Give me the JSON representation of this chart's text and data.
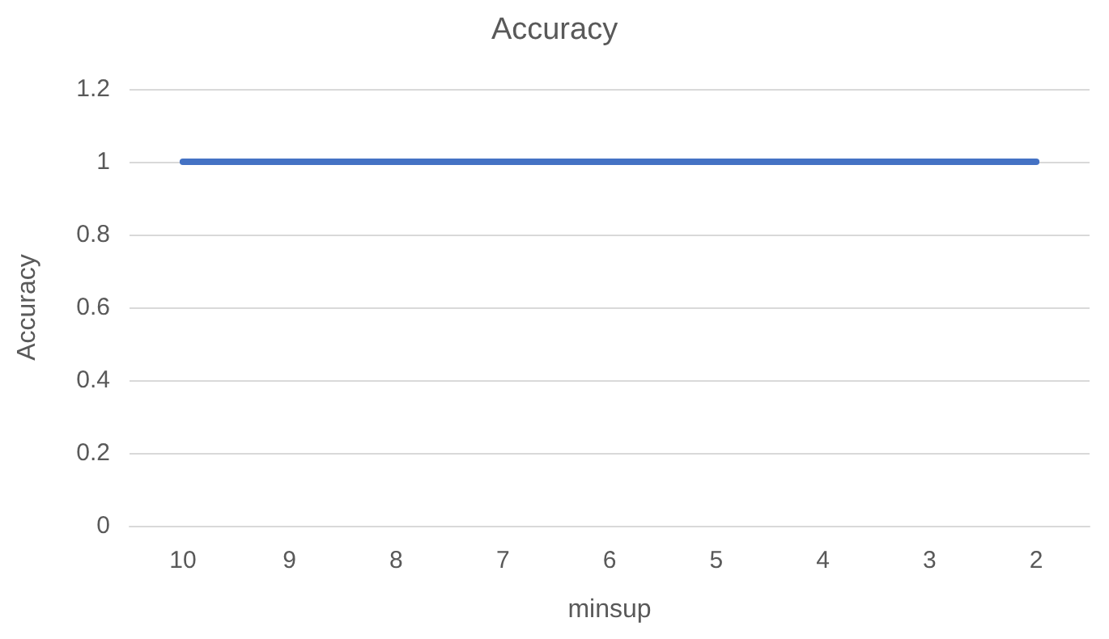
{
  "chart_data": {
    "type": "line",
    "title": "Accuracy",
    "xlabel": "minsup",
    "ylabel": "Accuracy",
    "categories": [
      "10",
      "9",
      "8",
      "7",
      "6",
      "5",
      "4",
      "3",
      "2"
    ],
    "series": [
      {
        "color": "#4472c4",
        "values": [
          1,
          1,
          1,
          1,
          1,
          1,
          1,
          1,
          1
        ]
      }
    ],
    "ylim": [
      0,
      1.2
    ],
    "yticks": [
      0,
      0.2,
      0.4,
      0.6,
      0.8,
      1,
      1.2
    ],
    "grid": "y",
    "marker": "none",
    "line_style": "solid"
  }
}
